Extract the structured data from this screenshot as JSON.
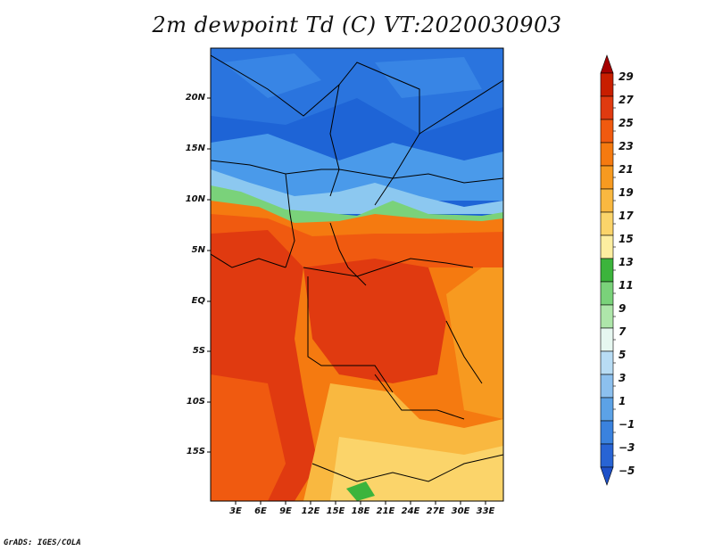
{
  "title": "2m dewpoint Td (C) VT:2020030903",
  "credit": "GrADS: IGES/COLA",
  "map": {
    "y_ticks": [
      "20N",
      "15N",
      "10N",
      "5N",
      "EQ",
      "5S",
      "10S",
      "15S"
    ],
    "x_ticks": [
      "3E",
      "6E",
      "9E",
      "12E",
      "15E",
      "18E",
      "21E",
      "24E",
      "27E",
      "30E",
      "33E"
    ]
  },
  "colorbar": {
    "labels": [
      "29",
      "27",
      "25",
      "23",
      "21",
      "19",
      "17",
      "15",
      "13",
      "11",
      "9",
      "7",
      "5",
      "3",
      "1",
      "−1",
      "−3",
      "−5"
    ],
    "colors": [
      "#a50000",
      "#c81e00",
      "#e03a10",
      "#f05a10",
      "#f57a10",
      "#f79a20",
      "#f9b840",
      "#fbd46a",
      "#fdeea0",
      "#3cb43c",
      "#7ad27a",
      "#aee6aa",
      "#e6f7f0",
      "#b8dcf4",
      "#8cc0ee",
      "#5ca2e6",
      "#3a82de",
      "#2864d4",
      "#1e50c8"
    ]
  }
}
